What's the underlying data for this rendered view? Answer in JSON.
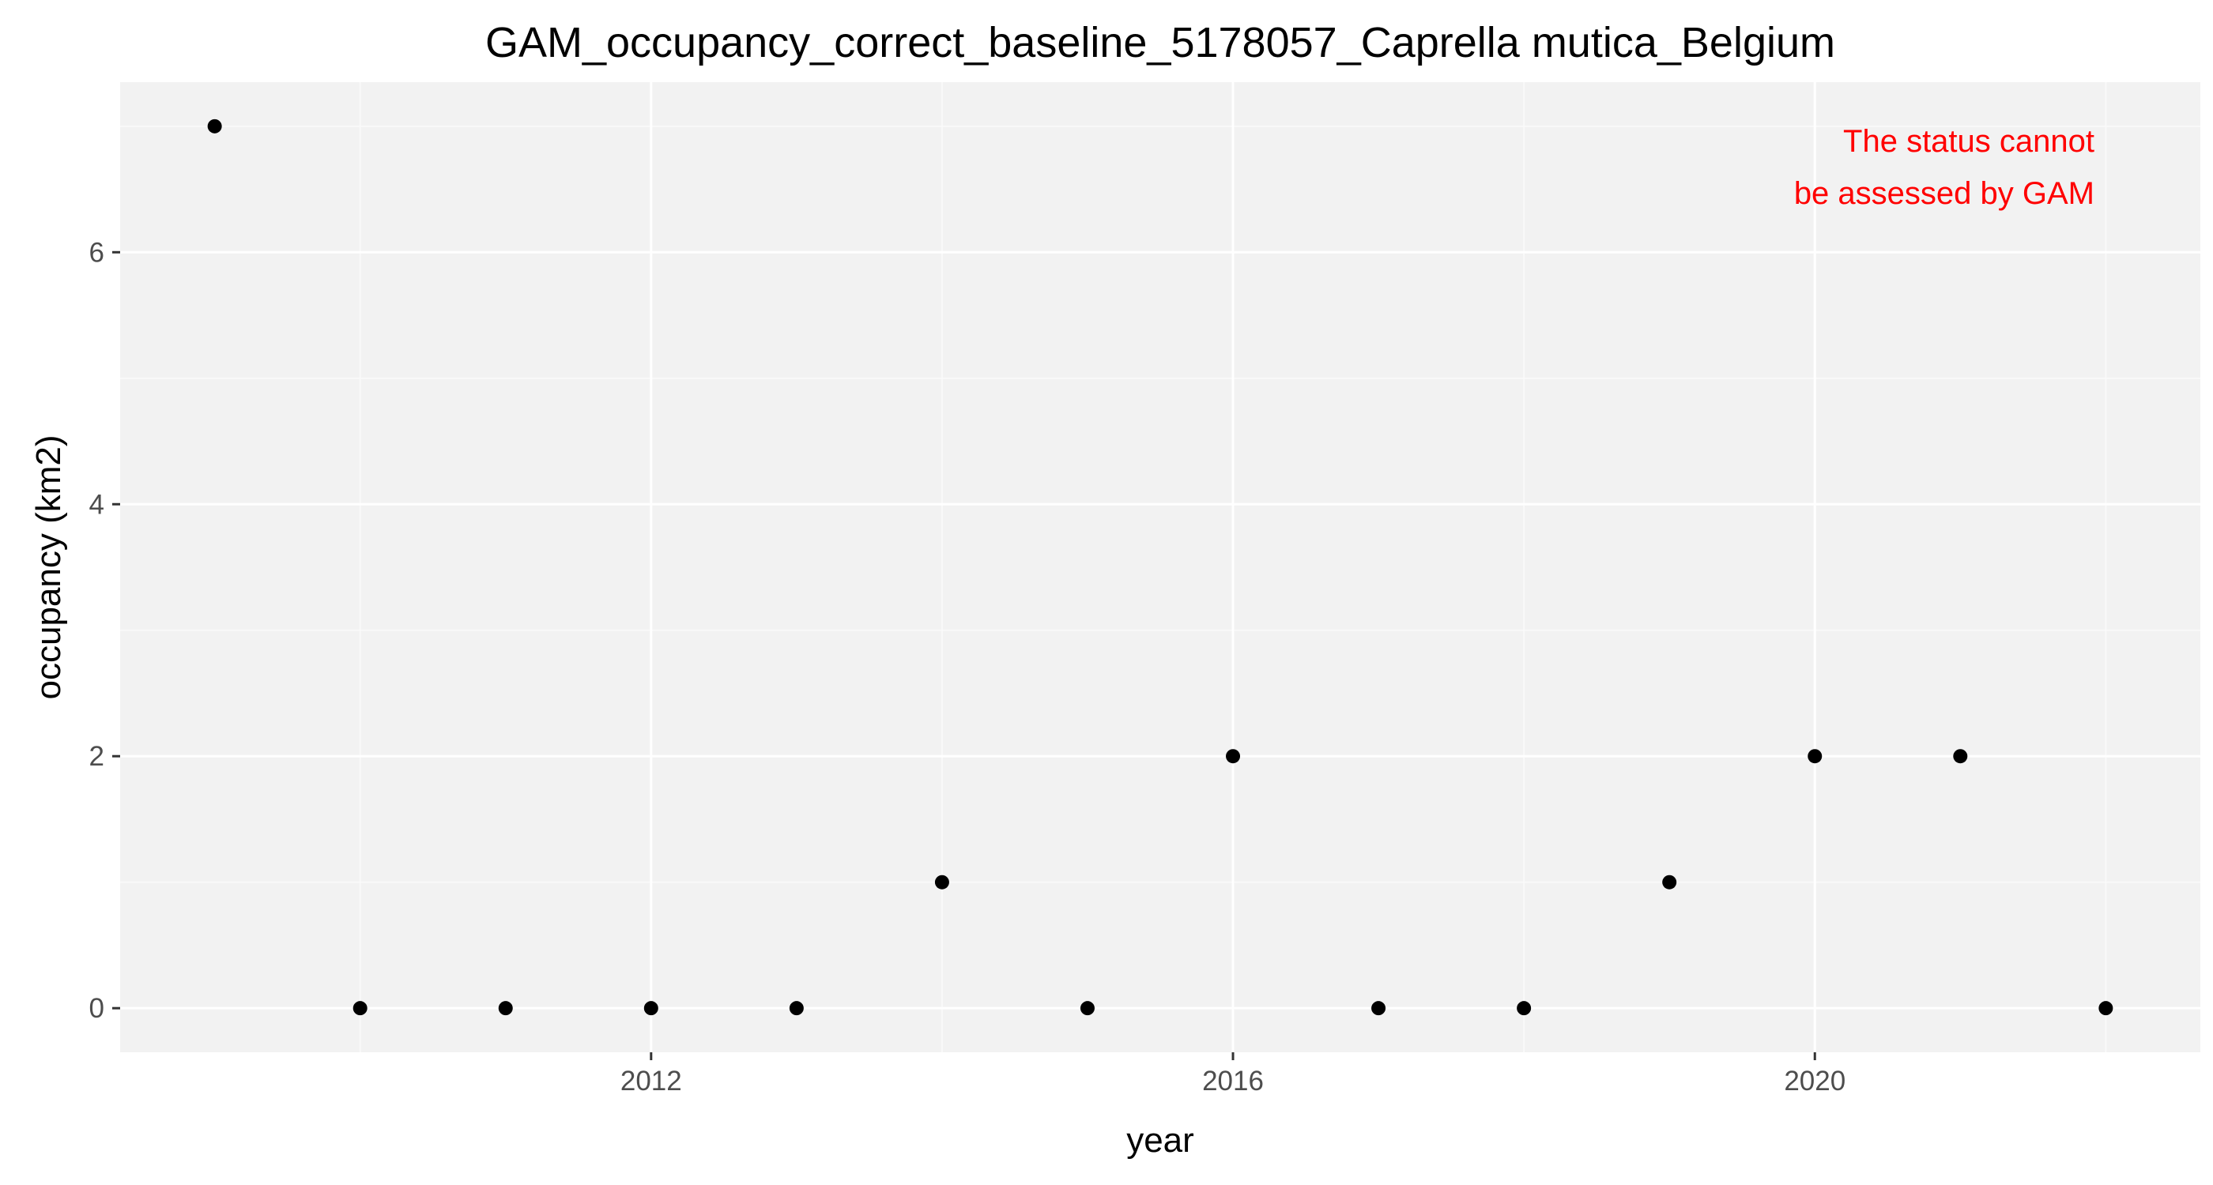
{
  "chart_data": {
    "type": "scatter",
    "title": "GAM_occupancy_correct_baseline_5178057_Caprella mutica_Belgium",
    "xlabel": "year",
    "ylabel": "occupancy (km2)",
    "xlim": [
      2008.35,
      2022.65
    ],
    "ylim": [
      -0.35,
      7.35
    ],
    "x_ticks": [
      2012,
      2016,
      2020
    ],
    "x_minor_ticks": [
      2010,
      2014,
      2018,
      2022
    ],
    "y_ticks": [
      0,
      2,
      4,
      6
    ],
    "y_minor_ticks": [
      1,
      3,
      5,
      7
    ],
    "grid": true,
    "legend": "none",
    "series": [
      {
        "x": [
          2009,
          2010,
          2011,
          2012,
          2013,
          2014,
          2015,
          2016,
          2017,
          2018,
          2019,
          2020,
          2021,
          2022
        ],
        "values": [
          7,
          0,
          0,
          0,
          0,
          1,
          0,
          2,
          0,
          0,
          1,
          2,
          2,
          0
        ],
        "color": "#000000"
      }
    ],
    "annotation": {
      "lines": [
        "The status cannot",
        "be assessed by GAM"
      ],
      "color": "#ff0000",
      "placement": "top-right"
    },
    "colors": {
      "panel_background": "#f2f2f2",
      "grid_major": "#ffffff",
      "grid_minor": "#fafafa",
      "tick_text": "#4d4d4d",
      "tick_mark": "#333333"
    }
  }
}
